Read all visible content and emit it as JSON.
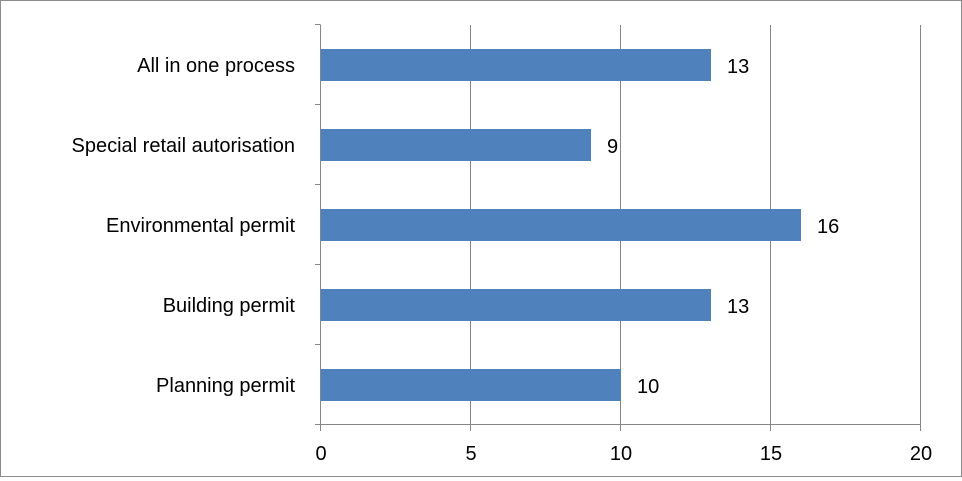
{
  "chart_data": {
    "type": "bar",
    "orientation": "horizontal",
    "categories": [
      "All in one process",
      "Special retail autorisation",
      "Environmental permit",
      "Building permit",
      "Planning permit"
    ],
    "values": [
      13,
      9,
      16,
      13,
      10
    ],
    "x_ticks": [
      "0",
      "5",
      "10",
      "15",
      "20"
    ],
    "xlim": [
      0,
      20
    ],
    "data_labels": [
      "13",
      "9",
      "16",
      "13",
      "10"
    ],
    "grid": "vertical",
    "legend": "none",
    "title": "",
    "xlabel": "",
    "ylabel": "",
    "bar_color": "#4f81bd",
    "grid_color": "#868686"
  }
}
